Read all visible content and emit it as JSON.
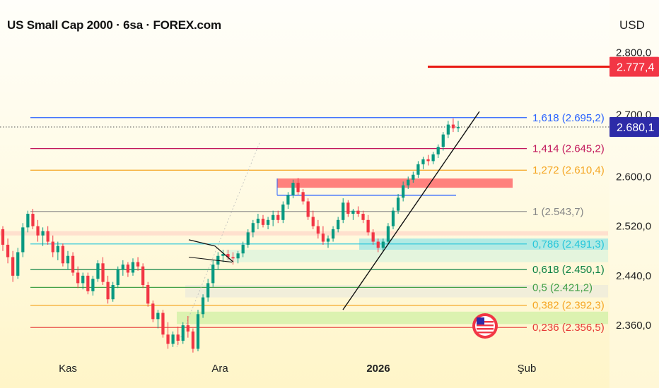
{
  "header": {
    "title": "US Small Cap 2000 · 6sa · FOREX.com",
    "currency": "USD"
  },
  "chart_data": {
    "type": "candlestick",
    "title": "US Small Cap 2000 · 6sa · FOREX.com",
    "ylim": [
      2310,
      2835
    ],
    "y_ticks": [
      {
        "value": 2800,
        "label": "2.800,0"
      },
      {
        "value": 2700,
        "label": "2.700,0"
      },
      {
        "value": 2600,
        "label": "2.600,0"
      },
      {
        "value": 2520,
        "label": "2.520,0"
      },
      {
        "value": 2440,
        "label": "2.440,0"
      },
      {
        "value": 2360,
        "label": "2.360,0"
      }
    ],
    "x_ticks": [
      {
        "label": "Kas",
        "bold": false
      },
      {
        "label": "Ara",
        "bold": false
      },
      {
        "label": "2026",
        "bold": true
      },
      {
        "label": "Şub",
        "bold": false
      }
    ],
    "price_tags": [
      {
        "value": 2777.4,
        "label": "2.777,4",
        "color": "#f23645"
      },
      {
        "value": 2680.1,
        "label": "2.680,1",
        "color": "#2d2ba8"
      }
    ],
    "fib_levels": [
      {
        "ratio": "1,618",
        "value": 2695.2,
        "label": "1,618 (2.695,2)",
        "color": "#2962ff"
      },
      {
        "ratio": "1,414",
        "value": 2645.2,
        "label": "1,414 (2.645,2)",
        "color": "#c2185b"
      },
      {
        "ratio": "1,272",
        "value": 2610.4,
        "label": "1,272 (2.610,4)",
        "color": "#f5a623"
      },
      {
        "ratio": "1",
        "value": 2543.7,
        "label": "1 (2.543,7)",
        "color": "#888888"
      },
      {
        "ratio": "0,786",
        "value": 2491.3,
        "label": "0,786 (2.491,3)",
        "color": "#26c6da"
      },
      {
        "ratio": "0,618",
        "value": 2450.1,
        "label": "0,618 (2.450,1)",
        "color": "#0b8043"
      },
      {
        "ratio": "0,5",
        "value": 2421.2,
        "label": "0,5 (2.421,2)",
        "color": "#43a047"
      },
      {
        "ratio": "0,382",
        "value": 2392.3,
        "label": "0,382 (2.392,3)",
        "color": "#f5a623"
      },
      {
        "ratio": "0,236",
        "value": 2356.5,
        "label": "0,236 (2.356,5)",
        "color": "#e53935"
      }
    ],
    "resistance_line": {
      "value": 2777.4,
      "color": "#e8130c"
    },
    "resistance_zone": {
      "from": 2582,
      "to": 2597,
      "color": "#ff6b6b"
    },
    "candles": [
      [
        2515,
        2520,
        2480,
        2490
      ],
      [
        2490,
        2500,
        2460,
        2470
      ],
      [
        2470,
        2480,
        2430,
        2440
      ],
      [
        2440,
        2485,
        2435,
        2478
      ],
      [
        2478,
        2525,
        2470,
        2518
      ],
      [
        2518,
        2545,
        2510,
        2540
      ],
      [
        2540,
        2548,
        2515,
        2520
      ],
      [
        2520,
        2530,
        2495,
        2505
      ],
      [
        2505,
        2518,
        2488,
        2512
      ],
      [
        2512,
        2520,
        2490,
        2495
      ],
      [
        2495,
        2505,
        2470,
        2478
      ],
      [
        2478,
        2495,
        2465,
        2488
      ],
      [
        2488,
        2492,
        2455,
        2460
      ],
      [
        2460,
        2480,
        2450,
        2472
      ],
      [
        2472,
        2478,
        2440,
        2445
      ],
      [
        2445,
        2455,
        2420,
        2428
      ],
      [
        2428,
        2445,
        2418,
        2440
      ],
      [
        2440,
        2445,
        2410,
        2415
      ],
      [
        2415,
        2440,
        2408,
        2435
      ],
      [
        2435,
        2465,
        2430,
        2460
      ],
      [
        2460,
        2470,
        2425,
        2430
      ],
      [
        2430,
        2440,
        2395,
        2402
      ],
      [
        2402,
        2430,
        2398,
        2425
      ],
      [
        2425,
        2455,
        2420,
        2450
      ],
      [
        2450,
        2465,
        2440,
        2458
      ],
      [
        2458,
        2462,
        2438,
        2445
      ],
      [
        2445,
        2468,
        2440,
        2462
      ],
      [
        2462,
        2470,
        2448,
        2455
      ],
      [
        2455,
        2460,
        2420,
        2425
      ],
      [
        2425,
        2430,
        2390,
        2395
      ],
      [
        2395,
        2400,
        2365,
        2370
      ],
      [
        2370,
        2385,
        2355,
        2380
      ],
      [
        2380,
        2385,
        2340,
        2345
      ],
      [
        2345,
        2365,
        2322,
        2330
      ],
      [
        2330,
        2350,
        2325,
        2345
      ],
      [
        2345,
        2358,
        2328,
        2335
      ],
      [
        2335,
        2365,
        2330,
        2360
      ],
      [
        2360,
        2375,
        2340,
        2350
      ],
      [
        2350,
        2355,
        2316,
        2322
      ],
      [
        2322,
        2385,
        2318,
        2378
      ],
      [
        2378,
        2410,
        2372,
        2405
      ],
      [
        2405,
        2435,
        2398,
        2428
      ],
      [
        2428,
        2465,
        2422,
        2458
      ],
      [
        2458,
        2478,
        2450,
        2472
      ],
      [
        2472,
        2482,
        2462,
        2475
      ],
      [
        2475,
        2482,
        2465,
        2470
      ],
      [
        2470,
        2478,
        2458,
        2468
      ],
      [
        2468,
        2480,
        2460,
        2476
      ],
      [
        2476,
        2495,
        2470,
        2490
      ],
      [
        2490,
        2515,
        2485,
        2510
      ],
      [
        2510,
        2530,
        2502,
        2525
      ],
      [
        2525,
        2540,
        2515,
        2532
      ],
      [
        2532,
        2538,
        2518,
        2522
      ],
      [
        2522,
        2535,
        2515,
        2530
      ],
      [
        2530,
        2545,
        2520,
        2538
      ],
      [
        2538,
        2545,
        2525,
        2530
      ],
      [
        2530,
        2560,
        2525,
        2555
      ],
      [
        2555,
        2575,
        2548,
        2570
      ],
      [
        2570,
        2595,
        2565,
        2590
      ],
      [
        2590,
        2598,
        2570,
        2575
      ],
      [
        2575,
        2580,
        2555,
        2560
      ],
      [
        2560,
        2565,
        2530,
        2535
      ],
      [
        2535,
        2545,
        2515,
        2520
      ],
      [
        2520,
        2530,
        2500,
        2508
      ],
      [
        2508,
        2520,
        2490,
        2495
      ],
      [
        2495,
        2505,
        2485,
        2500
      ],
      [
        2500,
        2520,
        2495,
        2515
      ],
      [
        2515,
        2535,
        2510,
        2530
      ],
      [
        2530,
        2565,
        2525,
        2558
      ],
      [
        2558,
        2562,
        2535,
        2540
      ],
      [
        2540,
        2548,
        2530,
        2545
      ],
      [
        2545,
        2552,
        2535,
        2540
      ],
      [
        2540,
        2545,
        2525,
        2530
      ],
      [
        2530,
        2538,
        2505,
        2510
      ],
      [
        2510,
        2515,
        2490,
        2495
      ],
      [
        2495,
        2500,
        2478,
        2485
      ],
      [
        2485,
        2500,
        2480,
        2495
      ],
      [
        2495,
        2525,
        2490,
        2520
      ],
      [
        2520,
        2550,
        2515,
        2545
      ],
      [
        2545,
        2572,
        2540,
        2566
      ],
      [
        2566,
        2592,
        2560,
        2586
      ],
      [
        2586,
        2600,
        2580,
        2595
      ],
      [
        2595,
        2608,
        2590,
        2603
      ],
      [
        2603,
        2625,
        2598,
        2620
      ],
      [
        2620,
        2632,
        2612,
        2628
      ],
      [
        2628,
        2635,
        2618,
        2625
      ],
      [
        2625,
        2640,
        2620,
        2636
      ],
      [
        2636,
        2652,
        2630,
        2648
      ],
      [
        2648,
        2672,
        2642,
        2668
      ],
      [
        2668,
        2690,
        2662,
        2684
      ],
      [
        2684,
        2694,
        2672,
        2678
      ],
      [
        2678,
        2690,
        2672,
        2680
      ]
    ]
  }
}
